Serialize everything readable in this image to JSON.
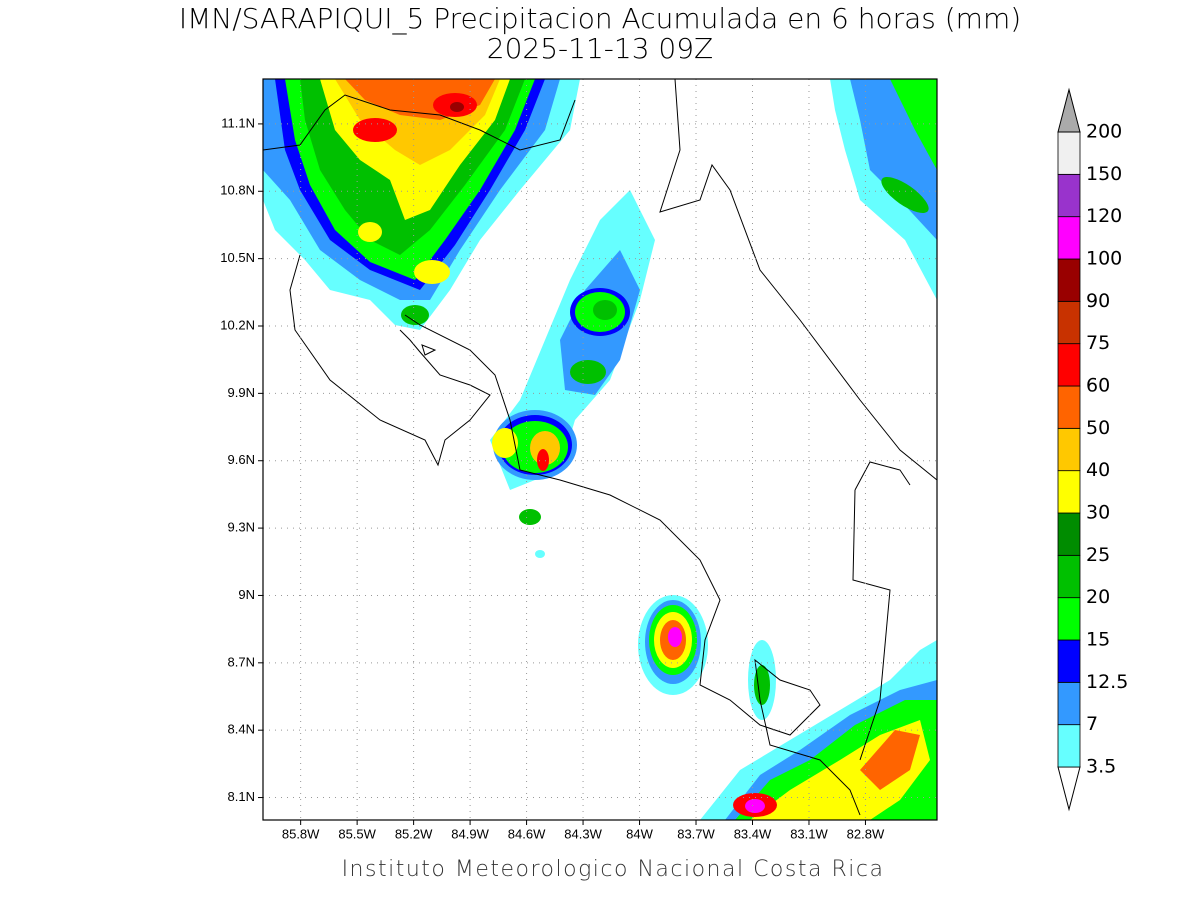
{
  "title": "IMN/SARAPIQUI_5 Precipitacion Acumulada en 6 horas (mm)",
  "subtitle": "2025-11-13 09Z",
  "footer": "Instituto Meteorologico Nacional Costa Rica",
  "map": {
    "xlim": [
      -86.0,
      -82.42
    ],
    "ylim": [
      8.0,
      11.3
    ],
    "xticks": [
      {
        "value": -85.8,
        "label": "85.8W"
      },
      {
        "value": -85.5,
        "label": "85.5W"
      },
      {
        "value": -85.2,
        "label": "85.2W"
      },
      {
        "value": -84.9,
        "label": "84.9W"
      },
      {
        "value": -84.6,
        "label": "84.6W"
      },
      {
        "value": -84.3,
        "label": "84.3W"
      },
      {
        "value": -84.0,
        "label": "84W"
      },
      {
        "value": -83.7,
        "label": "83.7W"
      },
      {
        "value": -83.4,
        "label": "83.4W"
      },
      {
        "value": -83.1,
        "label": "83.1W"
      },
      {
        "value": -82.8,
        "label": "82.8W"
      }
    ],
    "yticks": [
      {
        "value": 8.1,
        "label": "8.1N"
      },
      {
        "value": 8.4,
        "label": "8.4N"
      },
      {
        "value": 8.7,
        "label": "8.7N"
      },
      {
        "value": 9.0,
        "label": "9N"
      },
      {
        "value": 9.3,
        "label": "9.3N"
      },
      {
        "value": 9.6,
        "label": "9.6N"
      },
      {
        "value": 9.9,
        "label": "9.9N"
      },
      {
        "value": 10.2,
        "label": "10.2N"
      },
      {
        "value": 10.5,
        "label": "10.5N"
      },
      {
        "value": 10.8,
        "label": "10.8N"
      },
      {
        "value": 11.1,
        "label": "11.1N"
      }
    ]
  },
  "colorbar": {
    "levels": [
      3.5,
      7,
      12.5,
      15,
      20,
      25,
      30,
      40,
      50,
      60,
      75,
      90,
      100,
      120,
      150,
      200
    ],
    "colors": [
      "#ffffff",
      "#66ffff",
      "#3399ff",
      "#0000ff",
      "#00ff00",
      "#00c000",
      "#008c00",
      "#ffff00",
      "#ffc800",
      "#ff6400",
      "#ff0000",
      "#c83200",
      "#990000",
      "#ff00ff",
      "#9933cc",
      "#f0f0f0",
      "#aaaaaa"
    ]
  }
}
